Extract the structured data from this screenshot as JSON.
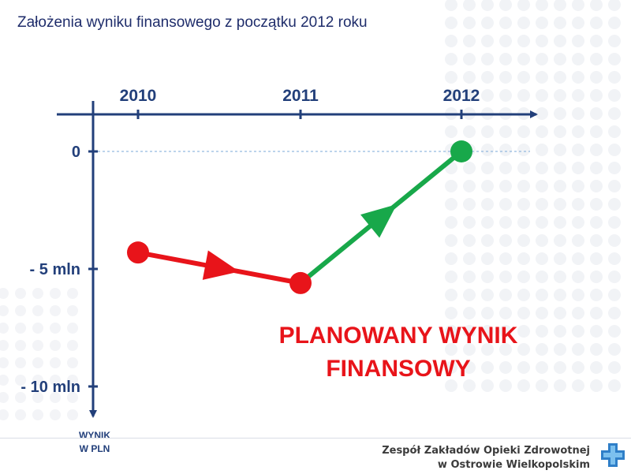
{
  "slide": {
    "title": "Założenia wyniku finansowego z początku 2012 roku",
    "headline_line1": "PLANOWANY WYNIK",
    "headline_line2": "FINANSOWY",
    "footer_line1": "Zespół Zakładów Opieki Zdrowotnej",
    "footer_line2": "w Ostrowie Wielkopolskim"
  },
  "chart_data": {
    "type": "line",
    "x": [
      "2010",
      "2011",
      "2012"
    ],
    "y_tick_labels": [
      "0",
      "- 5 mln",
      "- 10 mln"
    ],
    "y_tick_values": [
      0,
      -5,
      -10
    ],
    "ylabel": "WYNIK W PLN",
    "ylabel_lines": [
      "WYNIK",
      "W PLN"
    ],
    "ylim": [
      -10,
      0
    ],
    "points": [
      {
        "x": "2010",
        "y": -4.3,
        "color": "#e8141a"
      },
      {
        "x": "2011",
        "y": -5.6,
        "color": "#e8141a"
      },
      {
        "x": "2012",
        "y": 0,
        "color": "#18a84a"
      }
    ],
    "segments": [
      {
        "from": 0,
        "to": 1,
        "color": "#e8141a"
      },
      {
        "from": 1,
        "to": 2,
        "color": "#18a84a"
      }
    ],
    "zero_line": "dashed",
    "colors": {
      "axis": "#223f7a",
      "loss": "#e8141a",
      "gain": "#18a84a",
      "reference": "#7aa8d8"
    }
  }
}
